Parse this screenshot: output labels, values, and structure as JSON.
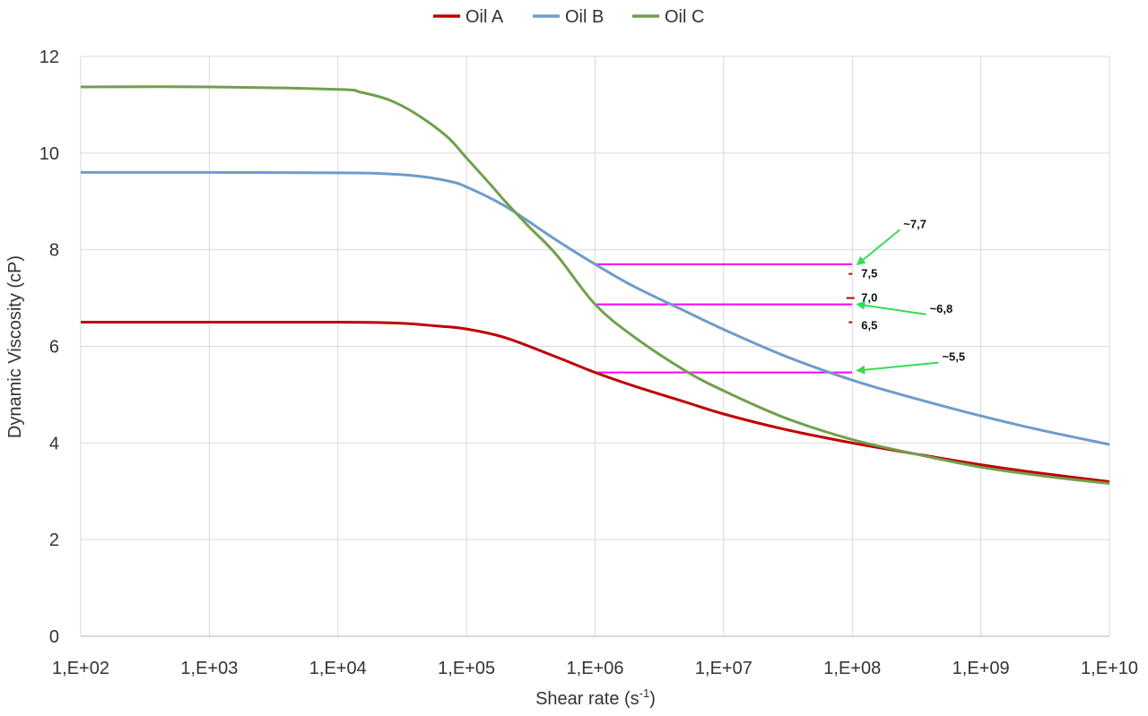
{
  "chart_data": {
    "type": "line",
    "xlabel_main": "Shear rate (s",
    "xlabel_sup": "-1",
    "xlabel_close": ")",
    "ylabel": "Dynamic Viscosity (cP)",
    "xscale": "log",
    "xlim": [
      100,
      10000000000
    ],
    "ylim": [
      0,
      12
    ],
    "grid": true,
    "legend_position": "top-center",
    "x_ticks": [
      {
        "value": 100,
        "label": "1,E+02"
      },
      {
        "value": 1000,
        "label": "1,E+03"
      },
      {
        "value": 10000,
        "label": "1,E+04"
      },
      {
        "value": 100000,
        "label": "1,E+05"
      },
      {
        "value": 1000000,
        "label": "1,E+06"
      },
      {
        "value": 10000000,
        "label": "1,E+07"
      },
      {
        "value": 100000000,
        "label": "1,E+08"
      },
      {
        "value": 1000000000,
        "label": "1,E+09"
      },
      {
        "value": 10000000000,
        "label": "1,E+10"
      }
    ],
    "y_ticks": [
      {
        "value": 0,
        "label": "0"
      },
      {
        "value": 2,
        "label": "2"
      },
      {
        "value": 4,
        "label": "4"
      },
      {
        "value": 6,
        "label": "6"
      },
      {
        "value": 8,
        "label": "8"
      },
      {
        "value": 10,
        "label": "10"
      },
      {
        "value": 12,
        "label": "12"
      }
    ],
    "series": [
      {
        "name": "Oil A",
        "color": "#c00000",
        "x": [
          100,
          1000,
          10000,
          30000,
          60000,
          100000,
          200000,
          500000,
          1000000,
          2000000,
          5000000,
          10000000,
          30000000,
          100000000,
          300000000,
          1000000000,
          3000000000,
          10000000000
        ],
        "y": [
          6.5,
          6.5,
          6.5,
          6.48,
          6.42,
          6.36,
          6.18,
          5.78,
          5.46,
          5.18,
          4.85,
          4.6,
          4.28,
          4.0,
          3.78,
          3.55,
          3.37,
          3.2
        ]
      },
      {
        "name": "Oil B",
        "color": "#6f9ccc",
        "x": [
          100,
          1000,
          10000,
          20000,
          40000,
          70000,
          100000,
          200000,
          500000,
          1000000,
          2000000,
          5000000,
          10000000,
          30000000,
          100000000,
          300000000,
          1000000000,
          3000000000,
          10000000000
        ],
        "y": [
          9.6,
          9.6,
          9.59,
          9.58,
          9.53,
          9.43,
          9.3,
          8.9,
          8.2,
          7.7,
          7.24,
          6.73,
          6.35,
          5.8,
          5.3,
          4.93,
          4.56,
          4.26,
          3.97
        ]
      },
      {
        "name": "Oil C",
        "color": "#70a04c",
        "x": [
          100,
          1000,
          10000,
          15000,
          25000,
          40000,
          70000,
          100000,
          150000,
          200000,
          300000,
          500000,
          1000000,
          2000000,
          5000000,
          10000000,
          30000000,
          100000000,
          300000000,
          1000000000,
          3000000000,
          10000000000
        ],
        "y": [
          11.37,
          11.37,
          11.32,
          11.26,
          11.1,
          10.82,
          10.35,
          9.9,
          9.38,
          9.0,
          8.5,
          7.9,
          6.87,
          6.2,
          5.5,
          5.08,
          4.52,
          4.07,
          3.78,
          3.5,
          3.32,
          3.16
        ]
      }
    ],
    "reference_lines": [
      {
        "y": 7.7,
        "x_start": 1000000,
        "x_end": 100000000,
        "color": "#ff00ff"
      },
      {
        "y": 6.87,
        "x_start": 1000000,
        "x_end": 100000000,
        "color": "#ff00ff"
      },
      {
        "y": 5.46,
        "x_start": 1000000,
        "x_end": 100000000,
        "color": "#ff00ff"
      }
    ],
    "scale_marks": [
      {
        "label": "7,5",
        "y": 7.5,
        "x": 100000000,
        "color": "#c00000"
      },
      {
        "label": "7,0",
        "y": 7.0,
        "x": 100000000,
        "color": "#c00000"
      },
      {
        "label": "6,5",
        "y": 6.5,
        "x": 100000000,
        "color": "#c00000"
      }
    ],
    "annotations": [
      {
        "label": "~7,7",
        "arrow_to": {
          "x": 100000000,
          "y": 7.7
        },
        "text_at": {
          "x": 250000000,
          "y": 8.45
        }
      },
      {
        "label": "~6,8",
        "arrow_to": {
          "x": 100000000,
          "y": 6.87
        },
        "text_at": {
          "x": 400000000,
          "y": 6.7
        }
      },
      {
        "label": "~5,5",
        "arrow_to": {
          "x": 100000000,
          "y": 5.5
        },
        "text_at": {
          "x": 500000000,
          "y": 5.7
        }
      }
    ],
    "annotation_color": "#33dd55"
  }
}
